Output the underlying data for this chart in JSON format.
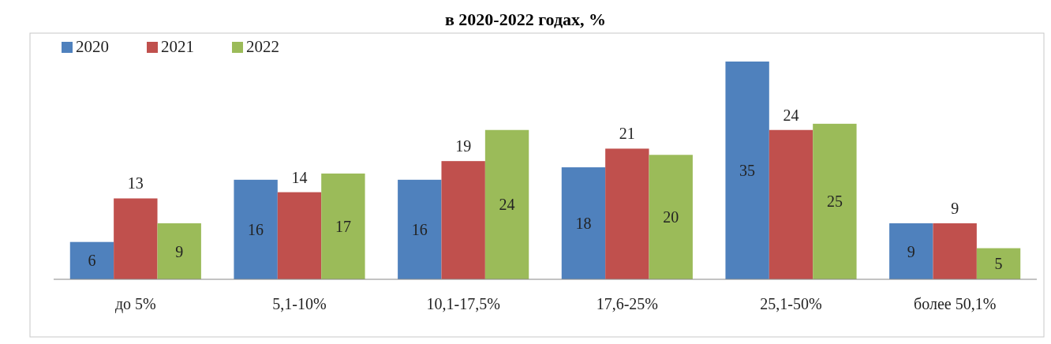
{
  "chart_data": {
    "type": "bar",
    "title": "в 2020-2022 годах, %",
    "categories": [
      "до 5%",
      "5,1-10%",
      "10,1-17,5%",
      "17,6-25%",
      "25,1-50%",
      "более 50,1%"
    ],
    "series": [
      {
        "name": "2020",
        "color": "#4f81bd",
        "values": [
          6,
          16,
          16,
          18,
          35,
          9
        ]
      },
      {
        "name": "2021",
        "color": "#c0504d",
        "values": [
          13,
          14,
          19,
          21,
          24,
          9
        ]
      },
      {
        "name": "2022",
        "color": "#9bbb59",
        "values": [
          9,
          17,
          24,
          20,
          25,
          5
        ]
      }
    ],
    "data_labels": true,
    "legend": "top left",
    "grid": false
  }
}
